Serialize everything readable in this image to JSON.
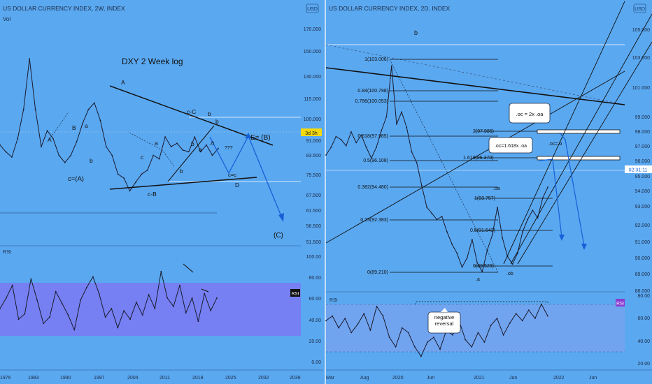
{
  "left_panel": {
    "header": "US DOLLAR CURRENCY INDEX, 2W, INDEX",
    "sub_label": "Vol",
    "currency_badge": "USD",
    "title": "DXY 2 Week log",
    "price_ticks": [
      "170.000",
      "150.000",
      "130.000",
      "115.000",
      "100.000",
      "91.000",
      "83.500",
      "75.500",
      "67.500",
      "61.500",
      "56.500",
      "51.500"
    ],
    "price_tag": "3d 3h",
    "wave_labels": {
      "A_low": "A",
      "B_low": "B",
      "a_low": "a",
      "b_low": "b",
      "cA": "c=(A)",
      "A_top": "A",
      "a_mid": "a",
      "c_mid": "c",
      "b_mid": "b",
      "cB": "c-B",
      "cC": "c-C",
      "b_top": "b",
      "a_right": "a",
      "b_right": "b",
      "a_dot": ".a",
      "b_dot": "b",
      "qqq": "???",
      "ce": "c=c",
      "D": "D",
      "EB": "E= (B)",
      "C": "(C)"
    },
    "rsi_label": "RSI",
    "rsi_badge": "RSI",
    "rsi_ticks": [
      "100.00",
      "80.00",
      "60.00",
      "40.00",
      "20.00",
      "0.00"
    ],
    "time_ticks": [
      "1976",
      "1983",
      "1990",
      "1997",
      "2004",
      "2011",
      "2018",
      "2025",
      "2032",
      "2039"
    ]
  },
  "right_panel": {
    "header": "US DOLLAR CURRENCY INDEX, 2D, INDEX",
    "currency_badge": "USD",
    "top_label": "b",
    "price_ticks": [
      "105.000",
      "103.000",
      "101.000",
      "99.000",
      "98.000",
      "97.000",
      "96.000",
      "95.000",
      "94.000",
      "93.000",
      "92.000",
      "91.000",
      "90.000",
      "89.000",
      "88.000"
    ],
    "price_tag": "02:31:11",
    "fib_levels": [
      "1(103.006)",
      "0.84(100.798)",
      "0.786(100.053)",
      "0.618(97.985)",
      "0.5(96.108)",
      "0.382(94.480)",
      "0.23(92.383)",
      "0(89.210)"
    ],
    "ext_levels": [
      "2(97.985)",
      "1.618(96.370)",
      "1(93.757)",
      "0.5(91.643)",
      "0(89.529)"
    ],
    "wave_labels": {
      "a": ".a",
      "oa": ".oa",
      "ob": ".ob",
      "oc_b": ".oc=.b"
    },
    "callout_1": ".oc = 2x .oa",
    "callout_2": ".oc=1.618x .oa",
    "rsi_label": "RSI",
    "rsi_badge": "RSI",
    "rsi_note": "negative reversal",
    "rsi_ticks": [
      "80.00",
      "60.00",
      "40.00",
      "20.00"
    ],
    "time_ticks": [
      "Mar",
      "Aug",
      "2020",
      "Jun",
      "2021",
      "Jun",
      "2022",
      "Jun"
    ]
  },
  "chart_data": [
    {
      "type": "line",
      "title": "DXY 2 Week log",
      "series": [
        {
          "values": [
            96,
            92,
            89,
            100,
            120,
            165,
            120,
            95,
            105,
            100,
            90,
            86,
            90,
            98,
            110,
            120,
            125,
            112,
            95,
            90,
            80,
            78,
            72,
            76,
            80,
            82,
            90,
            88,
            101,
            95,
            97,
            93,
            92,
            101,
            92,
            96,
            90,
            94
          ]
        }
      ],
      "grid": false
    },
    {
      "type": "line",
      "title": "RSI",
      "series": [
        {
          "values": [
            50,
            60,
            72,
            40,
            45,
            78,
            58,
            36,
            42,
            66,
            55,
            44,
            30,
            58,
            70,
            80,
            64,
            42,
            50,
            32,
            48,
            40,
            56,
            44,
            63,
            50,
            85,
            60,
            52,
            72,
            46,
            60,
            38,
            64,
            48,
            60
          ]
        }
      ],
      "ylim": [
        0,
        100
      ]
    },
    {
      "type": "line",
      "title": "",
      "series": [
        {
          "values": [
            97.0,
            97.5,
            98.2,
            98.0,
            97.6,
            98.5,
            97.8,
            98.3,
            97.5,
            96.8,
            97.5,
            98.6,
            99.5,
            102.8,
            99.0,
            99.8,
            98.8,
            97.2,
            96.5,
            95.0,
            93.6,
            93.2,
            92.8,
            93.0,
            92.0,
            91.2,
            90.6,
            89.7,
            90.3,
            91.5,
            90.0,
            89.4,
            90.8,
            91.8,
            93.6,
            91.6,
            90.4,
            89.9,
            90.6,
            92.0,
            92.8,
            93.4,
            92.9,
            94.2,
            94.9
          ]
        }
      ],
      "ylim": [
        88,
        106
      ]
    },
    {
      "type": "line",
      "title": "RSI",
      "series": [
        {
          "values": [
            58,
            62,
            52,
            60,
            48,
            55,
            64,
            50,
            70,
            62,
            44,
            36,
            52,
            48,
            36,
            28,
            40,
            44,
            34,
            50,
            46,
            58,
            42,
            36,
            48,
            40,
            54,
            60,
            46,
            56,
            64,
            58,
            67,
            60,
            72,
            62
          ]
        }
      ],
      "ylim": [
        20,
        80
      ]
    }
  ],
  "colors": {
    "background": "#5aa8f0",
    "rsi_band": "#7b79f2",
    "price_line": "#1a1a2e",
    "projection": "#1560d8",
    "guide_white": "#ffffff"
  }
}
